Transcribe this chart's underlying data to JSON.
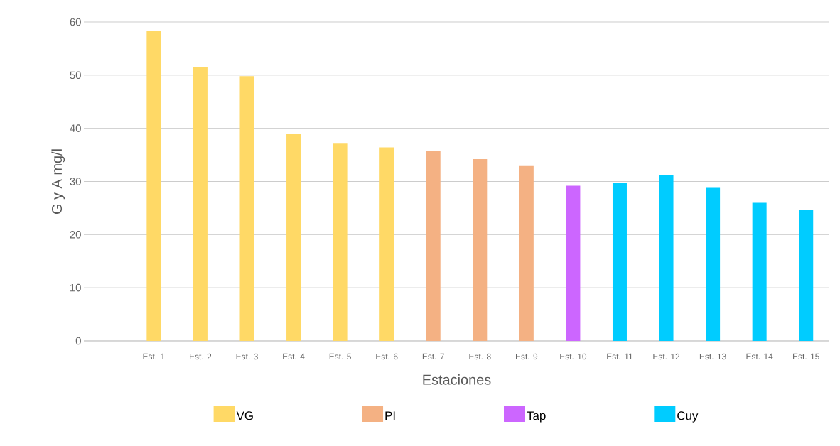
{
  "chart_data": {
    "type": "bar",
    "xlabel": "Estaciones",
    "ylabel": "G y A   mg/l",
    "categories": [
      null,
      "Est. 1",
      "Est. 2",
      "Est. 3",
      "Est. 4",
      "Est. 5",
      "Est. 6",
      "Est. 7",
      "Est. 8",
      "Est. 9",
      "Est. 10",
      "Est. 11",
      "Est. 12",
      "Est. 13",
      "Est. 14",
      "Est. 15"
    ],
    "series": [
      {
        "name": "VG",
        "color": "#ffd966",
        "values": [
          null,
          58.4,
          51.5,
          49.8,
          38.9,
          37.1,
          36.4,
          null,
          null,
          null,
          null,
          null,
          null,
          null,
          null,
          null
        ]
      },
      {
        "name": "PI",
        "color": "#f4b183",
        "values": [
          null,
          null,
          null,
          null,
          null,
          null,
          null,
          35.8,
          34.2,
          32.9,
          null,
          null,
          null,
          null,
          null,
          null
        ]
      },
      {
        "name": "Tap",
        "color": "#cc66ff",
        "values": [
          null,
          null,
          null,
          null,
          null,
          null,
          null,
          null,
          null,
          null,
          29.2,
          null,
          null,
          null,
          null,
          null
        ]
      },
      {
        "name": "Cuy",
        "color": "#00ccff",
        "values": [
          null,
          null,
          null,
          null,
          null,
          null,
          null,
          null,
          null,
          null,
          null,
          29.8,
          31.2,
          28.8,
          26.0,
          24.7
        ]
      }
    ],
    "ylim": [
      0,
      60
    ],
    "yticks": [
      0,
      10,
      20,
      30,
      40,
      50,
      60
    ],
    "grid": "y",
    "legend": "bottom"
  }
}
